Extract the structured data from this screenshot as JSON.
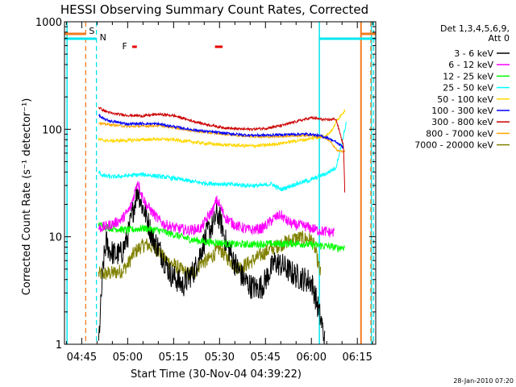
{
  "chart_data": {
    "type": "line",
    "title": "HESSI Observing Summary Count Rates, Corrected",
    "xlabel": "Start Time (30-Nov-04 04:39:22)",
    "ylabel": "Corrected Count Rate (s⁻¹ detector⁻¹)",
    "ylog": true,
    "ylim": [
      1,
      1000
    ],
    "xlim_min": [
      39.37,
      141.0
    ],
    "x_unit": "minutes after 04:00 UT",
    "x_ticks": [
      {
        "m": 45,
        "label": "04:45"
      },
      {
        "m": 60,
        "label": "05:00"
      },
      {
        "m": 75,
        "label": "05:15"
      },
      {
        "m": 90,
        "label": "05:30"
      },
      {
        "m": 105,
        "label": "05:45"
      },
      {
        "m": 120,
        "label": "06:00"
      },
      {
        "m": 135,
        "label": "06:15"
      }
    ],
    "y_ticks": [
      {
        "v": 1,
        "label": "1"
      },
      {
        "v": 10,
        "label": "10"
      },
      {
        "v": 100,
        "label": "100"
      },
      {
        "v": 1000,
        "label": "1000"
      }
    ],
    "legend_header": [
      "Det 1,3,4,5,6,9,",
      "Att 0"
    ],
    "legend_placement": "right",
    "date_stamp": "28-Jan-2010 07:20",
    "markers": {
      "S": {
        "label": "S",
        "color": "#f47b20",
        "m": 46.3
      },
      "N": {
        "label": "N",
        "color": "#00e5ee",
        "m": 49.8
      },
      "F": {
        "label": "F",
        "color": "#e80000",
        "m": 58.2
      }
    },
    "flare_flags": [
      [
        61.5,
        63.0
      ],
      [
        88.5,
        91.0
      ]
    ],
    "att_level_m": [
      [
        39.37,
        46.3
      ],
      [
        136.2,
        141.0
      ]
    ],
    "saa_level_m": [
      [
        39.37,
        49.8
      ],
      [
        122.6,
        141.0
      ]
    ],
    "vlines_orange_dashed": [
      46.3,
      139.4
    ],
    "vlines_cyan_dashed": [
      49.8,
      140.3
    ],
    "vlines_cyan_solid": [
      40.2,
      122.6,
      139.6
    ],
    "vlines_orange_solid": [
      136.2
    ],
    "series": [
      {
        "name": "3 - 6 keV",
        "color": "#000000",
        "x": [
          50.5,
          52,
          53,
          54,
          56,
          58,
          60,
          62,
          63.3,
          64.5,
          66,
          68,
          70,
          72,
          74,
          76,
          78,
          80,
          82,
          84,
          86,
          88,
          89,
          90,
          91,
          92,
          94,
          96,
          98,
          100,
          102,
          104,
          106,
          108,
          110,
          112,
          114,
          116,
          118,
          120,
          121,
          122.5,
          123.5,
          124.5
        ],
        "y": [
          1,
          5.5,
          9,
          7.5,
          6.8,
          7,
          10,
          19,
          28,
          20,
          16,
          10,
          8,
          6,
          4.5,
          4,
          3.5,
          4.2,
          5,
          7.5,
          11,
          13,
          16,
          15,
          12,
          9,
          6.5,
          5,
          4,
          3.5,
          3.3,
          3.5,
          4.5,
          5.8,
          5.5,
          5,
          4.5,
          4.2,
          4,
          3.8,
          3,
          2,
          1.5,
          1
        ]
      },
      {
        "name": "6 - 12 keV",
        "color": "#ff00ff",
        "x": [
          50.5,
          53,
          56,
          58,
          60,
          61,
          62,
          63.3,
          64.5,
          66,
          68,
          70,
          72,
          76,
          80,
          84,
          86,
          88,
          89,
          90,
          91,
          92,
          94,
          96,
          98,
          100,
          104,
          108,
          110,
          112,
          114,
          118,
          122,
          126,
          127.5
        ],
        "y": [
          12,
          12.5,
          13.5,
          14.5,
          17,
          19,
          24,
          33,
          25,
          20,
          17,
          14.5,
          13,
          12,
          11.5,
          12,
          15,
          18,
          22,
          20,
          17,
          15,
          13.5,
          12.5,
          12,
          11.5,
          12,
          15,
          16,
          14,
          13,
          12.5,
          11.5,
          11,
          11
        ]
      },
      {
        "name": "12 - 25 keV",
        "color": "#00ff00",
        "x": [
          50.5,
          52,
          55,
          60,
          65,
          70,
          75,
          80,
          85,
          90,
          95,
          100,
          105,
          110,
          115,
          120,
          125,
          127.5,
          128.5,
          130,
          131
        ],
        "y": [
          13,
          12.5,
          12,
          11.5,
          12,
          11.5,
          10.5,
          9.5,
          9,
          8.8,
          8.5,
          8.5,
          8.6,
          8.6,
          8.7,
          8.4,
          8.2,
          8,
          7.8,
          8,
          8
        ]
      },
      {
        "name": "25 - 50 keV",
        "color": "#00ffff",
        "x": [
          50.5,
          52,
          55,
          60,
          65,
          70,
          75,
          80,
          85,
          90,
          95,
          100,
          104,
          107,
          110,
          115,
          120,
          125,
          128,
          130,
          131.5
        ],
        "y": [
          40,
          37,
          36,
          37,
          38,
          36.5,
          35,
          33,
          31.5,
          31,
          30.5,
          30,
          30,
          31,
          27.5,
          31,
          34,
          39,
          44,
          75,
          120
        ]
      },
      {
        "name": "50 - 100 keV",
        "color": "#ffd700",
        "x": [
          50.5,
          52,
          55,
          60,
          65,
          70,
          75,
          80,
          85,
          90,
          95,
          100,
          105,
          110,
          115,
          120,
          125,
          127,
          128,
          129,
          130,
          131
        ],
        "y": [
          80,
          79,
          78,
          79,
          80,
          81,
          80,
          77,
          74,
          72,
          71,
          70,
          71,
          74,
          78,
          82,
          88,
          100,
          118,
          128,
          140,
          150
        ]
      },
      {
        "name": "100 - 300 keV",
        "color": "#0000ff",
        "x": [
          50.5,
          52,
          55,
          60,
          65,
          70,
          75,
          80,
          85,
          90,
          95,
          100,
          105,
          110,
          115,
          120,
          125,
          128,
          130.5
        ],
        "y": [
          135,
          125,
          118,
          112,
          113,
          112,
          106,
          100,
          96,
          93,
          90,
          88,
          88,
          89,
          90,
          90,
          84,
          76,
          68
        ]
      },
      {
        "name": "300 - 800 keV",
        "color": "#cc0000",
        "x": [
          50.5,
          52,
          55,
          60,
          65,
          70,
          75,
          80,
          85,
          90,
          95,
          100,
          105,
          110,
          115,
          120,
          125,
          128,
          130.5,
          131
        ],
        "y": [
          160,
          150,
          140,
          135,
          133,
          138,
          134,
          122,
          112,
          105,
          101,
          100,
          102,
          108,
          118,
          128,
          122,
          125,
          70,
          20
        ]
      },
      {
        "name": "800 - 7000 keV",
        "color": "#ffa500",
        "x": [
          50.5,
          52,
          55,
          60,
          65,
          70,
          75,
          80,
          85,
          90,
          95,
          100,
          105,
          110,
          115,
          120,
          125,
          127,
          128.5,
          131
        ],
        "y": [
          115,
          112,
          110,
          106,
          107,
          108,
          104,
          98,
          94,
          91,
          88,
          86,
          85,
          86,
          87,
          88,
          82,
          72,
          63,
          62
        ]
      },
      {
        "name": "7000 - 20000 keV",
        "color": "#808000",
        "x": [
          50.5,
          52,
          55,
          58,
          60,
          62,
          64,
          66,
          68,
          70,
          72,
          75,
          78,
          80,
          82,
          84,
          86,
          88,
          90,
          92,
          94,
          96,
          98,
          100,
          103,
          106,
          110,
          114,
          116,
          118,
          120,
          121,
          122,
          123
        ],
        "y": [
          4.5,
          4.5,
          4.6,
          4.8,
          5.5,
          7,
          8,
          8.5,
          8,
          7.5,
          6.2,
          5.5,
          4.8,
          4.5,
          4.8,
          5.8,
          6,
          6.8,
          7.8,
          6.6,
          5.8,
          5.2,
          5.4,
          5.8,
          6.6,
          7.5,
          8.5,
          9.5,
          9.8,
          9.6,
          9.4,
          8,
          6,
          4.5
        ]
      }
    ]
  }
}
